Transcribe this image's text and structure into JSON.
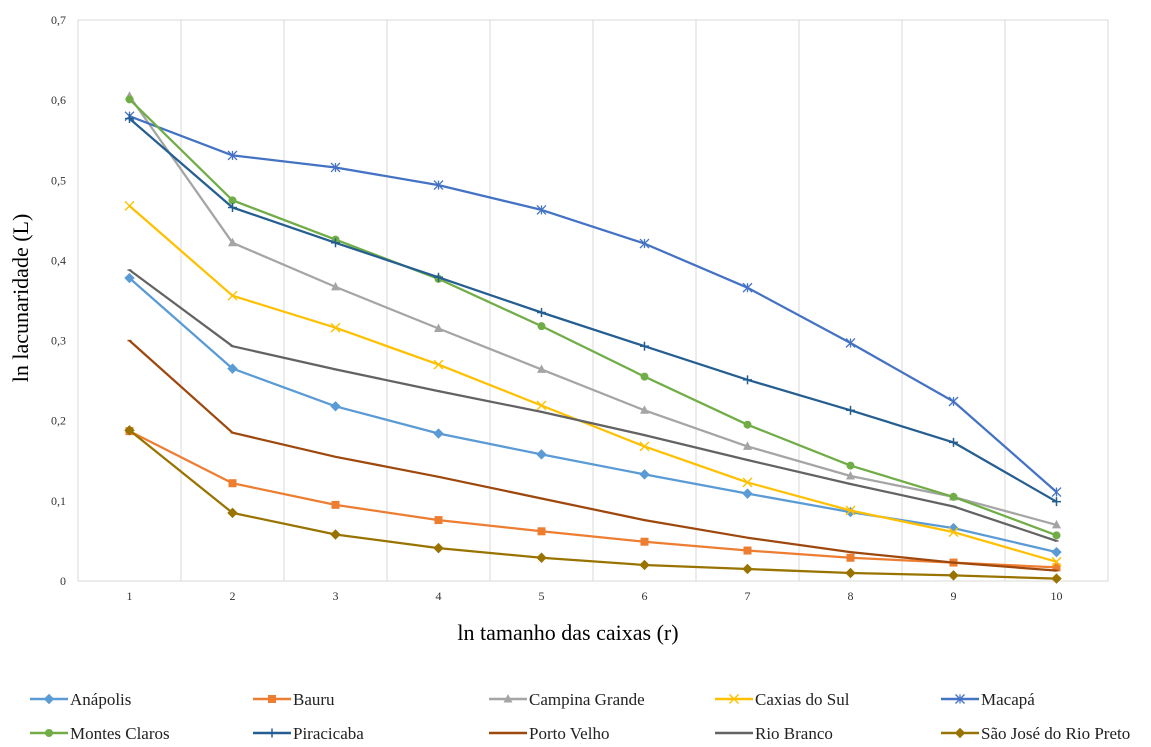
{
  "chart_data": {
    "type": "line",
    "title": "",
    "xlabel": "ln tamanho das caixas (r)",
    "ylabel": "ln lacunaridade (L)",
    "categories": [
      "1",
      "2",
      "3",
      "4",
      "5",
      "6",
      "7",
      "8",
      "9",
      "10"
    ],
    "y_ticks": [
      "0",
      "0,1",
      "0,2",
      "0,3",
      "0,4",
      "0,5",
      "0,6",
      "0,7"
    ],
    "ylim": [
      0,
      0.7
    ],
    "grid": "vertical",
    "legend_position": "bottom",
    "series": [
      {
        "name": "Anápolis",
        "color": "#5b9bd5",
        "marker": "diamond",
        "values": [
          0.378,
          0.265,
          0.218,
          0.184,
          0.158,
          0.133,
          0.109,
          0.086,
          0.066,
          0.036
        ]
      },
      {
        "name": "Bauru",
        "color": "#ed7d31",
        "marker": "square",
        "values": [
          0.187,
          0.122,
          0.095,
          0.076,
          0.062,
          0.049,
          0.038,
          0.029,
          0.023,
          0.017
        ]
      },
      {
        "name": "Campina Grande",
        "color": "#a5a5a5",
        "marker": "triangle",
        "values": [
          0.605,
          0.422,
          0.367,
          0.315,
          0.264,
          0.213,
          0.168,
          0.131,
          0.105,
          0.07
        ]
      },
      {
        "name": "Caxias do Sul",
        "color": "#ffc000",
        "marker": "x",
        "values": [
          0.468,
          0.356,
          0.316,
          0.27,
          0.219,
          0.168,
          0.123,
          0.088,
          0.061,
          0.024
        ]
      },
      {
        "name": "Macapá",
        "color": "#4472c4",
        "marker": "asterisk",
        "values": [
          0.58,
          0.531,
          0.516,
          0.494,
          0.463,
          0.421,
          0.366,
          0.297,
          0.224,
          0.111
        ]
      },
      {
        "name": "Montes Claros",
        "color": "#70ad47",
        "marker": "circle",
        "values": [
          0.601,
          0.475,
          0.426,
          0.377,
          0.318,
          0.255,
          0.195,
          0.144,
          0.105,
          0.057
        ]
      },
      {
        "name": "Piracicaba",
        "color": "#255e91",
        "marker": "plus",
        "values": [
          0.577,
          0.466,
          0.422,
          0.379,
          0.335,
          0.293,
          0.251,
          0.213,
          0.173,
          0.099
        ]
      },
      {
        "name": "Porto Velho",
        "color": "#9e480e",
        "marker": "none",
        "values": [
          0.3,
          0.185,
          0.155,
          0.13,
          0.103,
          0.076,
          0.054,
          0.036,
          0.023,
          0.013
        ]
      },
      {
        "name": "Rio Branco",
        "color": "#636363",
        "marker": "none",
        "values": [
          0.388,
          0.293,
          0.264,
          0.237,
          0.211,
          0.182,
          0.151,
          0.121,
          0.093,
          0.05
        ]
      },
      {
        "name": "São José do Rio Preto",
        "color": "#997300",
        "marker": "diamond",
        "values": [
          0.188,
          0.085,
          0.058,
          0.041,
          0.029,
          0.02,
          0.015,
          0.01,
          0.007,
          0.003
        ]
      }
    ]
  }
}
